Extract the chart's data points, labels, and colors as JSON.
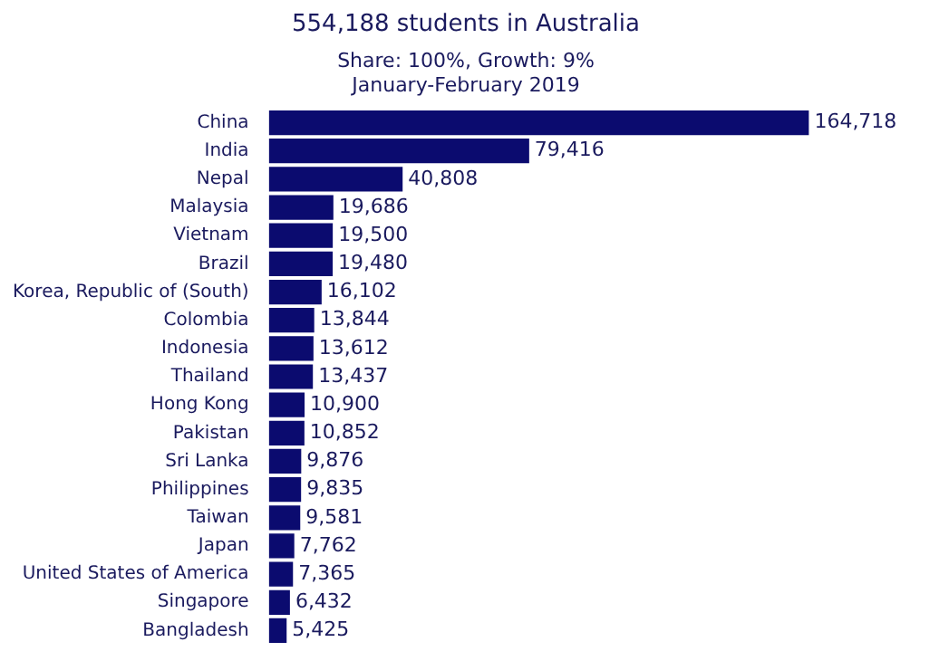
{
  "chart_data": {
    "type": "bar",
    "orientation": "horizontal",
    "title": "554,188 students in Australia",
    "subtitle": "Share: 100%, Growth: 9%\nJanuary-February 2019",
    "categories": [
      "China",
      "India",
      "Nepal",
      "Malaysia",
      "Vietnam",
      "Brazil",
      "Korea, Republic of (South)",
      "Colombia",
      "Indonesia",
      "Thailand",
      "Hong Kong",
      "Pakistan",
      "Sri Lanka",
      "Philippines",
      "Taiwan",
      "Japan",
      "United States of America",
      "Singapore",
      "Bangladesh"
    ],
    "values": [
      164718,
      79416,
      40808,
      19686,
      19500,
      19480,
      16102,
      13844,
      13612,
      13437,
      10900,
      10852,
      9876,
      9835,
      9581,
      7762,
      7365,
      6432,
      5425
    ],
    "value_labels": [
      "164,718",
      "79,416",
      "40,808",
      "19,686",
      "19,500",
      "19,480",
      "16,102",
      "13,844",
      "13,612",
      "13,437",
      "10,900",
      "10,852",
      "9,876",
      "9,835",
      "9,581",
      "7,762",
      "7,365",
      "6,432",
      "5,425"
    ],
    "color": "#0b0b6f",
    "tick_labels": "y",
    "grid": false,
    "legend": false
  }
}
